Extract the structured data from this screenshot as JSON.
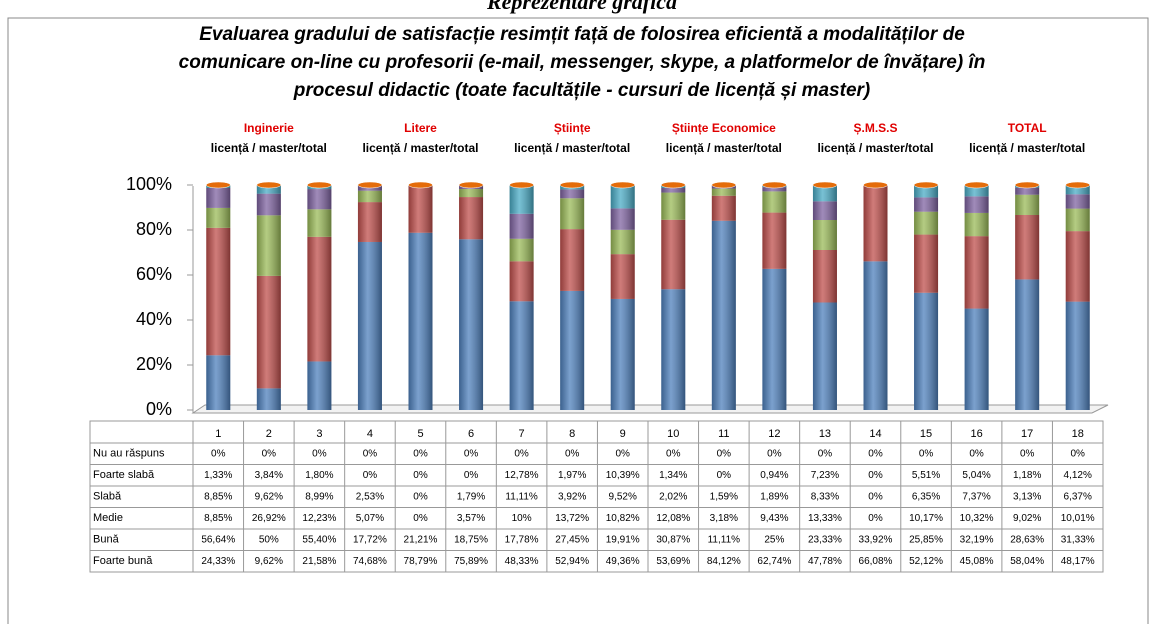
{
  "header": {
    "caption": "Reprezentare grafică"
  },
  "chart_data": {
    "type": "stacked_cylinder",
    "title": [
      "Evaluarea gradului de satisfacție resimțit față de folosirea eficientă a modalităților de",
      "comunicare on-line cu profesorii (e-mail, messenger, skype, a platformelor de învățare) în",
      "procesul didactic (toate facultățile - cursuri de licență și master)"
    ],
    "groups": [
      {
        "name": "Inginerie",
        "sub": "licență / master/total"
      },
      {
        "name": "Litere",
        "sub": "licență / master/total"
      },
      {
        "name": "Științe",
        "sub": "licență / master/total"
      },
      {
        "name": "Științe Economice",
        "sub": "licență / master/total"
      },
      {
        "name": "Ș.M.S.S",
        "sub": "licență / master/total"
      },
      {
        "name": "TOTAL",
        "sub": "licență / master/total"
      }
    ],
    "categories": [
      "1",
      "2",
      "3",
      "4",
      "5",
      "6",
      "7",
      "8",
      "9",
      "10",
      "11",
      "12",
      "13",
      "14",
      "15",
      "16",
      "17",
      "18"
    ],
    "ylim": [
      0,
      100
    ],
    "yticks": [
      {
        "value": 0,
        "label": "0%"
      },
      {
        "value": 20,
        "label": "20%"
      },
      {
        "value": 40,
        "label": "40%"
      },
      {
        "value": 60,
        "label": "60%"
      },
      {
        "value": 80,
        "label": "80%"
      },
      {
        "value": 100,
        "label": "100%"
      }
    ],
    "series": [
      {
        "name": "Nu au răspuns",
        "color": "#e46c0a",
        "values": [
          0,
          0,
          0,
          0,
          0,
          0,
          0,
          0,
          0,
          0,
          0,
          0,
          0,
          0,
          0,
          0,
          0,
          0
        ],
        "value_labels": [
          "0%",
          "0%",
          "0%",
          "0%",
          "0%",
          "0%",
          "0%",
          "0%",
          "0%",
          "0%",
          "0%",
          "0%",
          "0%",
          "0%",
          "0%",
          "0%",
          "0%",
          "0%"
        ]
      },
      {
        "name": "Foarte slabă",
        "color": "#4bacc6",
        "values": [
          1.33,
          3.84,
          1.8,
          0,
          0,
          0,
          12.78,
          1.97,
          10.39,
          1.34,
          0,
          0.94,
          7.23,
          0,
          5.51,
          5.04,
          1.18,
          4.12
        ],
        "value_labels": [
          "1,33%",
          "3,84%",
          "1,80%",
          "0%",
          "0%",
          "0%",
          "12,78%",
          "1,97%",
          "10,39%",
          "1,34%",
          "0%",
          "0,94%",
          "7,23%",
          "0%",
          "5,51%",
          "5,04%",
          "1,18%",
          "4,12%"
        ]
      },
      {
        "name": "Slabă",
        "color": "#8064a2",
        "values": [
          8.85,
          9.62,
          8.99,
          2.53,
          0,
          1.79,
          11.11,
          3.92,
          9.52,
          2.02,
          1.59,
          1.89,
          8.33,
          0,
          6.35,
          7.37,
          3.13,
          6.37
        ],
        "value_labels": [
          "8,85%",
          "9,62%",
          "8,99%",
          "2,53%",
          "0%",
          "1,79%",
          "11,11%",
          "3,92%",
          "9,52%",
          "2,02%",
          "1,59%",
          "1,89%",
          "8,33%",
          "0%",
          "6,35%",
          "7,37%",
          "3,13%",
          "6,37%"
        ]
      },
      {
        "name": "Medie",
        "color": "#9bbb59",
        "values": [
          8.85,
          26.92,
          12.23,
          5.07,
          0,
          3.57,
          10,
          13.72,
          10.82,
          12.08,
          3.18,
          9.43,
          13.33,
          0,
          10.17,
          10.32,
          9.02,
          10.01
        ],
        "value_labels": [
          "8,85%",
          "26,92%",
          "12,23%",
          "5,07%",
          "0%",
          "3,57%",
          "10%",
          "13,72%",
          "10,82%",
          "12,08%",
          "3,18%",
          "9,43%",
          "13,33%",
          "0%",
          "10,17%",
          "10,32%",
          "9,02%",
          "10,01%"
        ]
      },
      {
        "name": "Bună",
        "color": "#c0504d",
        "values": [
          56.64,
          50,
          55.4,
          17.72,
          21.21,
          18.75,
          17.78,
          27.45,
          19.91,
          30.87,
          11.11,
          25,
          23.33,
          33.92,
          25.85,
          32.19,
          28.63,
          31.33
        ],
        "value_labels": [
          "56,64%",
          "50%",
          "55,40%",
          "17,72%",
          "21,21%",
          "18,75%",
          "17,78%",
          "27,45%",
          "19,91%",
          "30,87%",
          "11,11%",
          "25%",
          "23,33%",
          "33,92%",
          "25,85%",
          "32,19%",
          "28,63%",
          "31,33%"
        ]
      },
      {
        "name": "Foarte bună",
        "color": "#4f81bd",
        "values": [
          24.33,
          9.62,
          21.58,
          74.68,
          78.79,
          75.89,
          48.33,
          52.94,
          49.36,
          53.69,
          84.12,
          62.74,
          47.78,
          66.08,
          52.12,
          45.08,
          58.04,
          48.17
        ],
        "value_labels": [
          "24,33%",
          "9,62%",
          "21,58%",
          "74,68%",
          "78,79%",
          "75,89%",
          "48,33%",
          "52,94%",
          "49,36%",
          "53,69%",
          "84,12%",
          "62,74%",
          "47,78%",
          "66,08%",
          "52,12%",
          "45,08%",
          "58,04%",
          "48,17%"
        ]
      }
    ]
  }
}
